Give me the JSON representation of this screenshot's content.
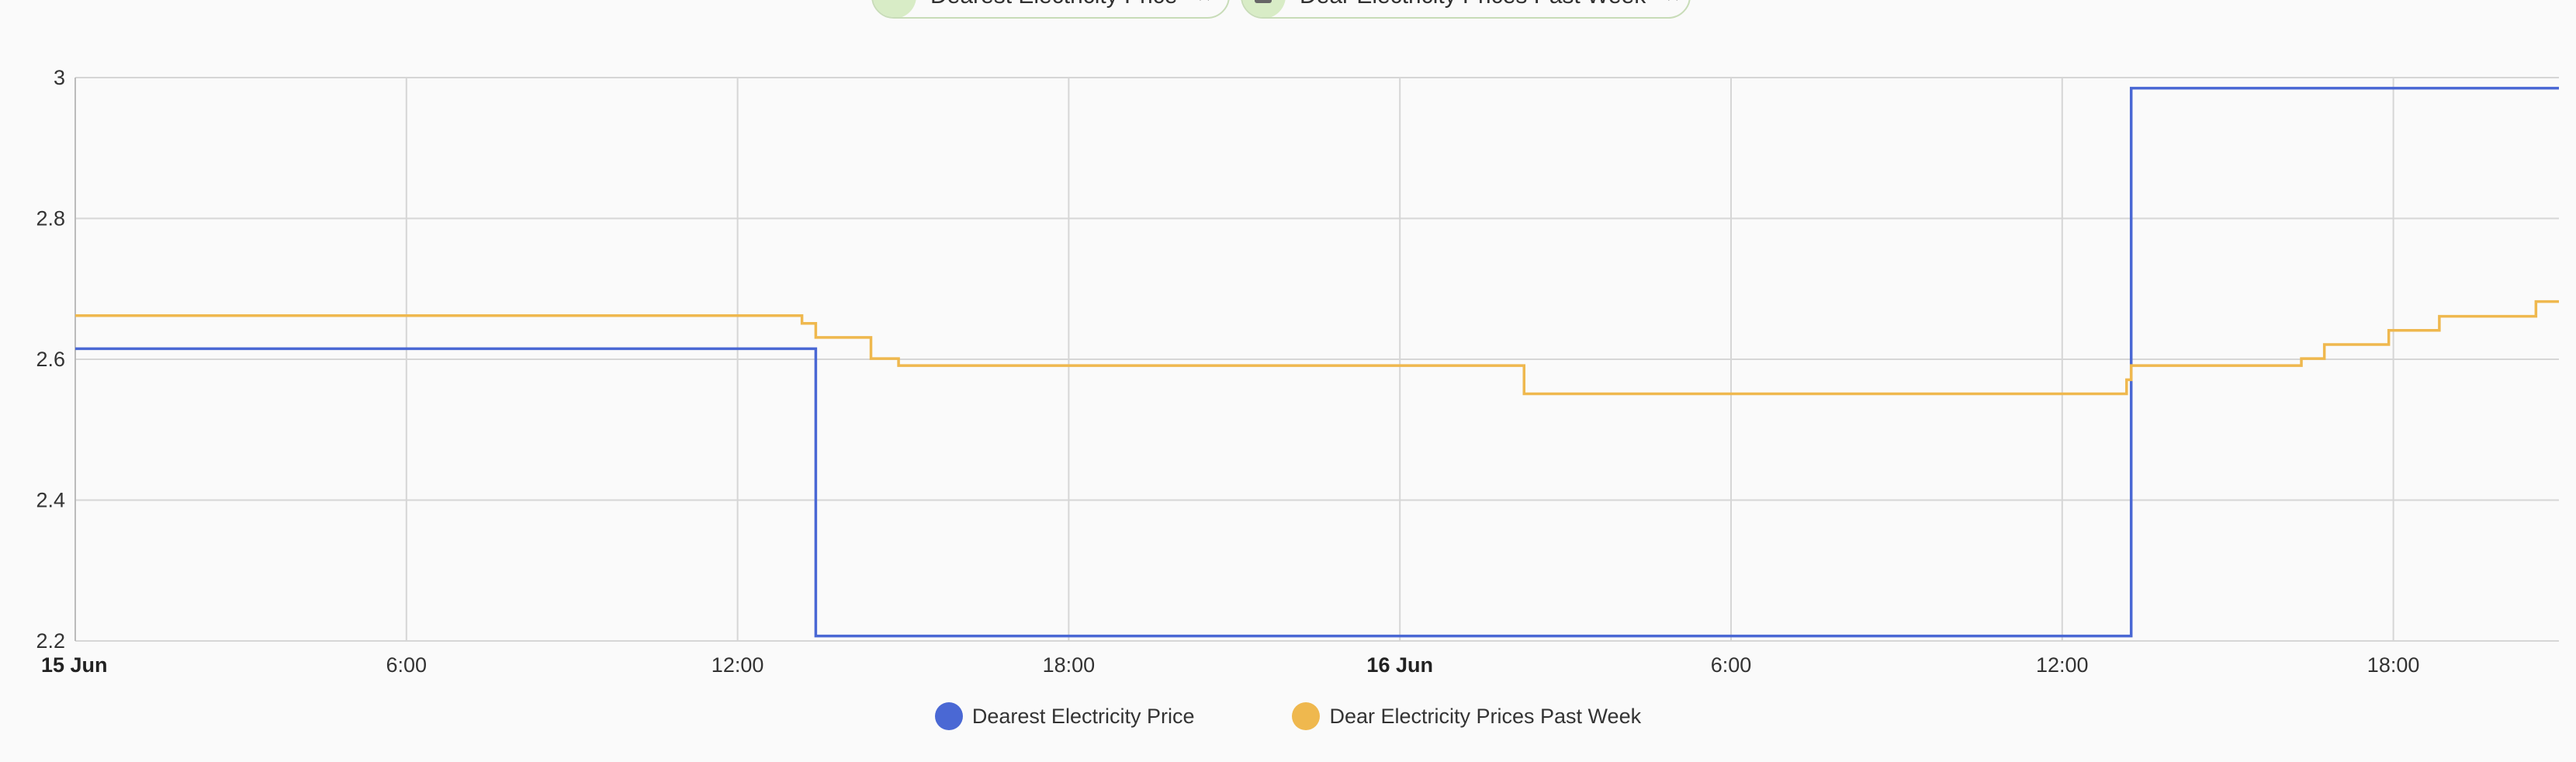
{
  "chips": [
    {
      "label": "Dearest Electricity Price",
      "close": "×"
    },
    {
      "label": "Dear Electricity Prices Past Week",
      "close": "×"
    }
  ],
  "colors": {
    "series1": "#4a68d4",
    "series2": "#efb84e",
    "grid": "#d6d6d6"
  },
  "chart_data": {
    "type": "line",
    "step": true,
    "grid": true,
    "legend_position": "bottom",
    "ylim": [
      2.2,
      3.0
    ],
    "yticks": [
      "2.2",
      "2.4",
      "2.6",
      "2.8",
      "3"
    ],
    "xlim": [
      "2024-06-15 00:00",
      "2024-06-16 21:00"
    ],
    "xticks": [
      {
        "t": "2024-06-15 00:00",
        "label": "15 Jun",
        "bold": true
      },
      {
        "t": "2024-06-15 06:00",
        "label": "6:00"
      },
      {
        "t": "2024-06-15 12:00",
        "label": "12:00"
      },
      {
        "t": "2024-06-15 18:00",
        "label": "18:00"
      },
      {
        "t": "2024-06-16 00:00",
        "label": "16 Jun",
        "bold": true
      },
      {
        "t": "2024-06-16 06:00",
        "label": "6:00"
      },
      {
        "t": "2024-06-16 12:00",
        "label": "12:00"
      },
      {
        "t": "2024-06-16 18:00",
        "label": "18:00"
      }
    ],
    "series": [
      {
        "name": "Dearest Electricity Price",
        "points": [
          [
            "2024-06-15 00:00",
            2.615
          ],
          [
            "2024-06-15 13:25",
            2.207
          ],
          [
            "2024-06-16 13:15",
            2.985
          ],
          [
            "2024-06-16 21:00",
            2.985
          ]
        ]
      },
      {
        "name": "Dear Electricity Prices Past Week",
        "points": [
          [
            "2024-06-15 00:00",
            2.662
          ],
          [
            "2024-06-15 13:10",
            2.651
          ],
          [
            "2024-06-15 13:25",
            2.631
          ],
          [
            "2024-06-15 14:25",
            2.601
          ],
          [
            "2024-06-15 14:55",
            2.591
          ],
          [
            "2024-06-16 02:15",
            2.551
          ],
          [
            "2024-06-16 13:10",
            2.571
          ],
          [
            "2024-06-16 13:15",
            2.591
          ],
          [
            "2024-06-16 16:20",
            2.601
          ],
          [
            "2024-06-16 16:45",
            2.621
          ],
          [
            "2024-06-16 17:55",
            2.641
          ],
          [
            "2024-06-16 18:50",
            2.661
          ],
          [
            "2024-06-16 20:35",
            2.682
          ],
          [
            "2024-06-16 21:00",
            2.682
          ]
        ]
      }
    ]
  }
}
